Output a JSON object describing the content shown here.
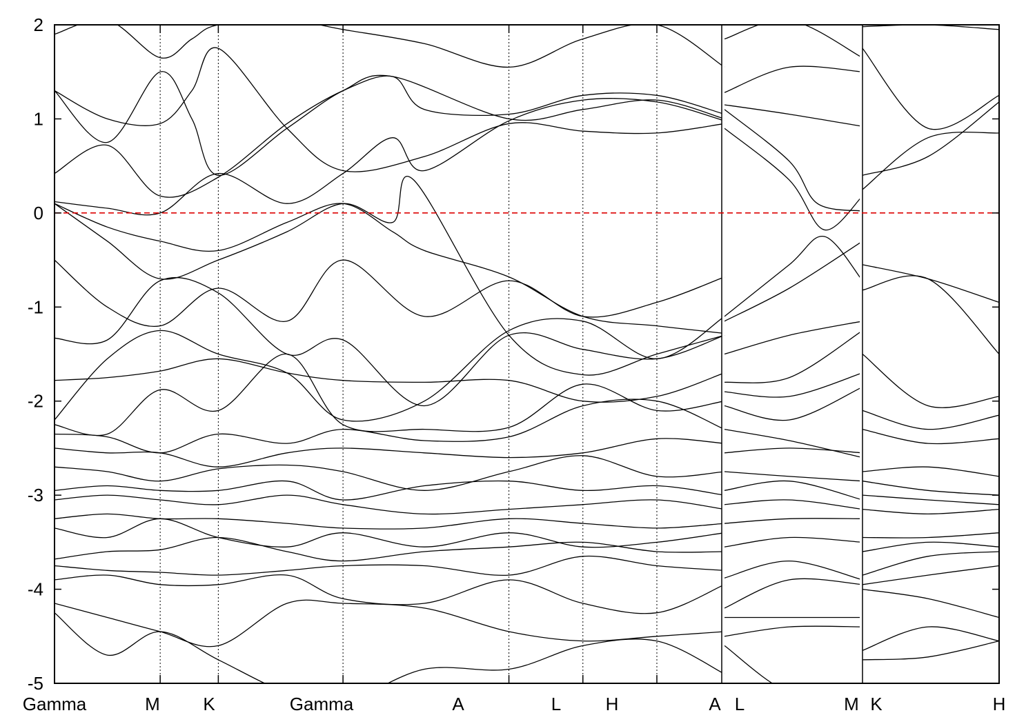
{
  "chart_data": {
    "type": "line",
    "title": "",
    "xlabel": "",
    "ylabel": "",
    "ylim": [
      -5,
      2
    ],
    "yticks": [
      -5,
      -4,
      -3,
      -2,
      -1,
      0,
      1,
      2
    ],
    "fermi_level": 0,
    "fermi_color": "#dd0000",
    "band_color": "#000000",
    "grid": false,
    "segments": [
      {
        "xlim": [
          0,
          6.34
        ],
        "breaks": [
          0,
          1.0,
          1.55,
          4.3,
          5.7,
          6.34
        ]
      },
      {
        "xlim": [
          6.34,
          7.32
        ],
        "breaks": [
          6.34,
          7.32
        ]
      },
      {
        "xlim": [
          7.32,
          8.32
        ],
        "breaks": [
          7.32,
          8.32
        ]
      }
    ],
    "kpoints": [
      {
        "label": "Gamma",
        "x": 0
      },
      {
        "label": "M",
        "x": 1.0
      },
      {
        "label": "K",
        "x": 1.55
      },
      {
        "label": "Gamma",
        "x": 2.73
      },
      {
        "label": "A",
        "x": 4.3
      },
      {
        "label": "L",
        "x": 5.0
      },
      {
        "label": "H",
        "x": 5.7
      },
      {
        "label": "A",
        "x": 6.34
      },
      {
        "label": "L",
        "x": 6.34
      },
      {
        "label": "M",
        "x": 7.32
      },
      {
        "label": "K",
        "x": 7.32
      },
      {
        "label": "H",
        "x": 8.32
      }
    ],
    "series": [
      {
        "x": [
          0,
          0.5,
          1.0,
          1.3,
          1.55,
          2.2,
          2.73,
          3.5,
          4.3,
          5.0,
          5.7,
          6.34
        ],
        "y": [
          1.9,
          2.05,
          1.65,
          1.85,
          2.0,
          2.05,
          1.95,
          1.8,
          1.55,
          1.85,
          2.0,
          1.55
        ]
      },
      {
        "x": [
          0,
          0.5,
          1.0,
          1.3,
          1.55,
          2.2,
          2.73,
          3.5,
          4.3,
          5.0,
          5.7,
          6.34
        ],
        "y": [
          1.3,
          1.0,
          0.95,
          1.3,
          1.75,
          0.9,
          0.45,
          0.6,
          0.95,
          0.87,
          0.85,
          0.95
        ]
      },
      {
        "x": [
          0,
          0.5,
          1.0,
          1.3,
          1.55,
          2.2,
          2.73,
          3.2,
          4.3,
          5.0,
          5.7,
          6.34
        ],
        "y": [
          1.3,
          0.75,
          1.5,
          1.0,
          0.4,
          0.9,
          1.3,
          1.45,
          1.0,
          1.1,
          1.2,
          1.0
        ]
      },
      {
        "x": [
          0,
          0.5,
          1.0,
          1.55,
          2.2,
          2.73,
          3.2,
          3.5,
          4.3,
          5.0,
          5.7,
          6.34
        ],
        "y": [
          0.42,
          0.72,
          0.18,
          0.38,
          0.95,
          1.3,
          1.45,
          1.1,
          1.05,
          1.25,
          1.25,
          1.05
        ]
      },
      {
        "x": [
          0,
          0.5,
          1.0,
          1.55,
          2.2,
          2.73,
          3.2,
          3.5,
          4.3,
          5.0,
          5.7,
          6.34
        ],
        "y": [
          0.12,
          0.05,
          0.0,
          0.42,
          0.1,
          0.42,
          0.8,
          0.45,
          0.98,
          1.2,
          1.18,
          0.98
        ]
      },
      {
        "x": [
          0,
          0.5,
          1.0,
          1.55,
          2.2,
          2.73,
          3.2,
          3.5,
          4.3,
          5.0,
          5.7,
          6.34
        ],
        "y": [
          0.1,
          -0.15,
          -0.3,
          -0.4,
          -0.1,
          0.1,
          -0.2,
          -0.4,
          -0.68,
          -1.1,
          -1.2,
          -1.28
        ]
      },
      {
        "x": [
          0,
          0.5,
          1.0,
          1.55,
          2.2,
          2.73,
          3.2,
          3.4,
          4.3,
          5.0,
          5.7,
          6.34
        ],
        "y": [
          0.1,
          -0.3,
          -0.7,
          -0.5,
          -0.2,
          0.1,
          -0.1,
          0.35,
          -1.3,
          -1.72,
          -1.5,
          -1.3
        ]
      },
      {
        "x": [
          0,
          0.5,
          1.0,
          1.55,
          2.2,
          2.73,
          3.5,
          4.3,
          5.0,
          5.7,
          6.34
        ],
        "y": [
          -0.5,
          -1.0,
          -1.2,
          -0.8,
          -1.15,
          -0.5,
          -1.1,
          -0.72,
          -1.1,
          -0.95,
          -0.68
        ]
      },
      {
        "x": [
          0,
          0.5,
          1.0,
          1.55,
          2.2,
          2.73,
          3.5,
          4.3,
          5.0,
          5.7,
          6.34
        ],
        "y": [
          -1.33,
          -1.35,
          -0.72,
          -0.85,
          -1.5,
          -1.35,
          -2.05,
          -1.3,
          -1.45,
          -1.55,
          -1.3
        ]
      },
      {
        "x": [
          0,
          0.5,
          1.0,
          1.55,
          2.2,
          2.73,
          3.5,
          4.3,
          5.0,
          5.7,
          6.34
        ],
        "y": [
          -2.2,
          -1.55,
          -1.25,
          -1.5,
          -1.7,
          -2.2,
          -2.0,
          -1.25,
          -1.15,
          -1.55,
          -1.1
        ]
      },
      {
        "x": [
          0,
          0.5,
          1.0,
          1.55,
          2.2,
          2.73,
          3.5,
          4.3,
          5.0,
          5.7,
          6.34
        ],
        "y": [
          -1.78,
          -1.75,
          -1.68,
          -1.55,
          -1.7,
          -1.78,
          -1.8,
          -1.78,
          -2.0,
          -1.95,
          -1.7
        ]
      },
      {
        "x": [
          0,
          0.5,
          1.0,
          1.55,
          2.2,
          2.73,
          3.5,
          4.3,
          5.0,
          5.7,
          6.34
        ],
        "y": [
          -2.25,
          -2.35,
          -1.88,
          -2.1,
          -1.5,
          -2.25,
          -2.3,
          -2.28,
          -1.82,
          -2.1,
          -2.0
        ]
      },
      {
        "x": [
          0,
          0.5,
          1.0,
          1.55,
          2.2,
          2.73,
          3.5,
          4.3,
          5.0,
          5.7,
          6.34
        ],
        "y": [
          -2.35,
          -2.38,
          -2.55,
          -2.35,
          -2.45,
          -2.3,
          -2.42,
          -2.38,
          -2.05,
          -2.0,
          -2.3
        ]
      },
      {
        "x": [
          0,
          0.5,
          1.0,
          1.55,
          2.2,
          2.73,
          3.5,
          4.3,
          5.0,
          5.7,
          6.34
        ],
        "y": [
          -2.5,
          -2.55,
          -2.55,
          -2.7,
          -2.55,
          -2.5,
          -2.55,
          -2.6,
          -2.55,
          -2.4,
          -2.45
        ]
      },
      {
        "x": [
          0,
          0.5,
          1.0,
          1.55,
          2.2,
          2.73,
          3.5,
          4.3,
          5.0,
          5.7,
          6.34
        ],
        "y": [
          -2.7,
          -2.75,
          -2.85,
          -2.72,
          -2.68,
          -2.75,
          -2.95,
          -2.75,
          -2.58,
          -2.8,
          -2.75
        ]
      },
      {
        "x": [
          0,
          0.5,
          1.0,
          1.55,
          2.2,
          2.73,
          3.5,
          4.3,
          5.0,
          5.7,
          6.34
        ],
        "y": [
          -2.95,
          -2.9,
          -2.95,
          -2.95,
          -2.85,
          -3.05,
          -2.9,
          -2.85,
          -2.95,
          -2.9,
          -3.0
        ]
      },
      {
        "x": [
          0,
          0.5,
          1.0,
          1.55,
          2.2,
          2.73,
          3.5,
          4.3,
          5.0,
          5.7,
          6.34
        ],
        "y": [
          -3.05,
          -3.0,
          -3.05,
          -3.1,
          -3.0,
          -3.1,
          -3.2,
          -3.15,
          -3.1,
          -3.05,
          -3.15
        ]
      },
      {
        "x": [
          0,
          0.5,
          1.0,
          1.55,
          2.2,
          2.73,
          3.5,
          4.3,
          5.0,
          5.7,
          6.34
        ],
        "y": [
          -3.25,
          -3.2,
          -3.25,
          -3.25,
          -3.3,
          -3.35,
          -3.35,
          -3.25,
          -3.3,
          -3.35,
          -3.3
        ]
      },
      {
        "x": [
          0,
          0.5,
          1.0,
          1.55,
          2.2,
          2.73,
          3.5,
          4.3,
          5.0,
          5.7,
          6.34
        ],
        "y": [
          -3.35,
          -3.45,
          -3.25,
          -3.45,
          -3.55,
          -3.4,
          -3.55,
          -3.4,
          -3.55,
          -3.5,
          -3.4
        ]
      },
      {
        "x": [
          0,
          0.5,
          1.0,
          1.55,
          2.2,
          2.73,
          3.5,
          4.3,
          5.0,
          5.7,
          6.34
        ],
        "y": [
          -3.68,
          -3.6,
          -3.58,
          -3.45,
          -3.6,
          -3.7,
          -3.6,
          -3.55,
          -3.5,
          -3.6,
          -3.6
        ]
      },
      {
        "x": [
          0,
          0.5,
          1.0,
          1.55,
          2.2,
          2.73,
          3.5,
          4.3,
          5.0,
          5.7,
          6.34
        ],
        "y": [
          -3.75,
          -3.8,
          -3.82,
          -3.85,
          -3.8,
          -3.75,
          -3.75,
          -3.85,
          -3.65,
          -3.75,
          -3.8
        ]
      },
      {
        "x": [
          0,
          0.5,
          1.0,
          1.55,
          2.2,
          2.73,
          3.5,
          4.3,
          5.0,
          5.7,
          6.34
        ],
        "y": [
          -3.9,
          -3.85,
          -3.95,
          -3.95,
          -3.85,
          -4.1,
          -4.15,
          -3.9,
          -4.15,
          -4.25,
          -3.95
        ]
      },
      {
        "x": [
          0,
          0.5,
          1.0,
          1.55,
          2.2,
          2.73,
          3.5,
          4.3,
          5.0,
          5.7,
          6.34
        ],
        "y": [
          -4.15,
          -4.3,
          -4.45,
          -4.6,
          -4.15,
          -4.15,
          -4.2,
          -4.45,
          -4.55,
          -4.5,
          -4.45
        ]
      },
      {
        "x": [
          0,
          0.5,
          1.0,
          1.55,
          2.2,
          2.73,
          3.5,
          4.3,
          5.0,
          5.7,
          6.34
        ],
        "y": [
          -4.25,
          -4.7,
          -4.45,
          -4.75,
          -5.1,
          -5.2,
          -4.85,
          -4.85,
          -4.6,
          -4.55,
          -4.9
        ]
      },
      {
        "x": [
          6.34,
          6.8,
          7.32
        ],
        "y": [
          1.85,
          2.05,
          1.65
        ]
      },
      {
        "x": [
          6.34,
          6.8,
          7.32
        ],
        "y": [
          1.28,
          1.55,
          1.5
        ]
      },
      {
        "x": [
          6.34,
          6.8,
          7.32
        ],
        "y": [
          1.15,
          1.05,
          0.92
        ]
      },
      {
        "x": [
          6.34,
          6.8,
          7.0,
          7.32
        ],
        "y": [
          1.1,
          0.55,
          0.1,
          0.02
        ]
      },
      {
        "x": [
          6.34,
          6.8,
          7.05,
          7.32
        ],
        "y": [
          0.9,
          0.35,
          -0.18,
          0.18
        ]
      },
      {
        "x": [
          6.34,
          6.8,
          7.05,
          7.32
        ],
        "y": [
          -1.1,
          -0.55,
          -0.25,
          -0.72
        ]
      },
      {
        "x": [
          6.34,
          6.8,
          7.32
        ],
        "y": [
          -1.15,
          -0.8,
          -0.3
        ]
      },
      {
        "x": [
          6.34,
          6.8,
          7.32
        ],
        "y": [
          -1.5,
          -1.3,
          -1.15
        ]
      },
      {
        "x": [
          6.34,
          6.8,
          7.32
        ],
        "y": [
          -1.8,
          -1.75,
          -1.25
        ]
      },
      {
        "x": [
          6.34,
          6.8,
          7.32
        ],
        "y": [
          -1.9,
          -1.95,
          -1.7
        ]
      },
      {
        "x": [
          6.34,
          6.8,
          7.32
        ],
        "y": [
          -2.05,
          -2.2,
          -1.85
        ]
      },
      {
        "x": [
          6.34,
          6.8,
          7.32
        ],
        "y": [
          -2.3,
          -2.42,
          -2.6
        ]
      },
      {
        "x": [
          6.34,
          6.8,
          7.32
        ],
        "y": [
          -2.55,
          -2.5,
          -2.55
        ]
      },
      {
        "x": [
          6.34,
          6.8,
          7.32
        ],
        "y": [
          -2.75,
          -2.8,
          -2.85
        ]
      },
      {
        "x": [
          6.34,
          6.8,
          7.32
        ],
        "y": [
          -2.95,
          -2.85,
          -3.05
        ]
      },
      {
        "x": [
          6.34,
          6.8,
          7.32
        ],
        "y": [
          -3.1,
          -3.05,
          -3.15
        ]
      },
      {
        "x": [
          6.34,
          6.8,
          7.32
        ],
        "y": [
          -3.3,
          -3.25,
          -3.25
        ]
      },
      {
        "x": [
          6.34,
          6.8,
          7.32
        ],
        "y": [
          -3.55,
          -3.45,
          -3.5
        ]
      },
      {
        "x": [
          6.34,
          6.8,
          7.32
        ],
        "y": [
          -3.88,
          -3.7,
          -3.9
        ]
      },
      {
        "x": [
          6.34,
          6.8,
          7.32
        ],
        "y": [
          -4.2,
          -3.9,
          -3.95
        ]
      },
      {
        "x": [
          6.34,
          6.8,
          7.32
        ],
        "y": [
          -4.3,
          -4.3,
          -4.3
        ]
      },
      {
        "x": [
          6.34,
          6.8,
          7.32
        ],
        "y": [
          -4.5,
          -4.4,
          -4.4
        ]
      },
      {
        "x": [
          6.34,
          6.8,
          7.32
        ],
        "y": [
          -4.6,
          -5.1,
          -5.2
        ]
      },
      {
        "x": [
          7.32,
          7.8,
          8.32
        ],
        "y": [
          1.98,
          2.0,
          1.95
        ]
      },
      {
        "x": [
          7.32,
          7.8,
          8.32
        ],
        "y": [
          1.75,
          0.9,
          1.25
        ]
      },
      {
        "x": [
          7.32,
          7.8,
          8.32
        ],
        "y": [
          0.4,
          0.6,
          1.18
        ]
      },
      {
        "x": [
          7.32,
          7.8,
          8.32
        ],
        "y": [
          0.25,
          0.8,
          0.85
        ]
      },
      {
        "x": [
          7.32,
          7.8,
          8.32
        ],
        "y": [
          -0.55,
          -0.7,
          -0.95
        ]
      },
      {
        "x": [
          7.32,
          7.8,
          8.32
        ],
        "y": [
          -0.82,
          -0.7,
          -1.5
        ]
      },
      {
        "x": [
          7.32,
          7.8,
          8.32
        ],
        "y": [
          -1.5,
          -2.05,
          -1.95
        ]
      },
      {
        "x": [
          7.32,
          7.8,
          8.32
        ],
        "y": [
          -2.1,
          -2.3,
          -2.15
        ]
      },
      {
        "x": [
          7.32,
          7.8,
          8.32
        ],
        "y": [
          -2.3,
          -2.45,
          -2.4
        ]
      },
      {
        "x": [
          7.32,
          7.8,
          8.32
        ],
        "y": [
          -2.75,
          -2.7,
          -2.8
        ]
      },
      {
        "x": [
          7.32,
          7.8,
          8.32
        ],
        "y": [
          -2.85,
          -2.95,
          -3.0
        ]
      },
      {
        "x": [
          7.32,
          7.8,
          8.32
        ],
        "y": [
          -3.0,
          -3.05,
          -3.1
        ]
      },
      {
        "x": [
          7.32,
          7.8,
          8.32
        ],
        "y": [
          -3.15,
          -3.2,
          -3.15
        ]
      },
      {
        "x": [
          7.32,
          7.8,
          8.32
        ],
        "y": [
          -3.45,
          -3.45,
          -3.4
        ]
      },
      {
        "x": [
          7.32,
          7.8,
          8.32
        ],
        "y": [
          -3.6,
          -3.5,
          -3.55
        ]
      },
      {
        "x": [
          7.32,
          7.8,
          8.32
        ],
        "y": [
          -3.85,
          -3.65,
          -3.6
        ]
      },
      {
        "x": [
          7.32,
          7.8,
          8.32
        ],
        "y": [
          -3.95,
          -3.85,
          -3.75
        ]
      },
      {
        "x": [
          7.32,
          7.8,
          8.32
        ],
        "y": [
          -4.0,
          -4.1,
          -4.3
        ]
      },
      {
        "x": [
          7.32,
          7.8,
          8.32
        ],
        "y": [
          -4.65,
          -4.4,
          -4.55
        ]
      },
      {
        "x": [
          7.32,
          7.8,
          8.32
        ],
        "y": [
          -4.75,
          -4.72,
          -4.55
        ]
      }
    ]
  }
}
